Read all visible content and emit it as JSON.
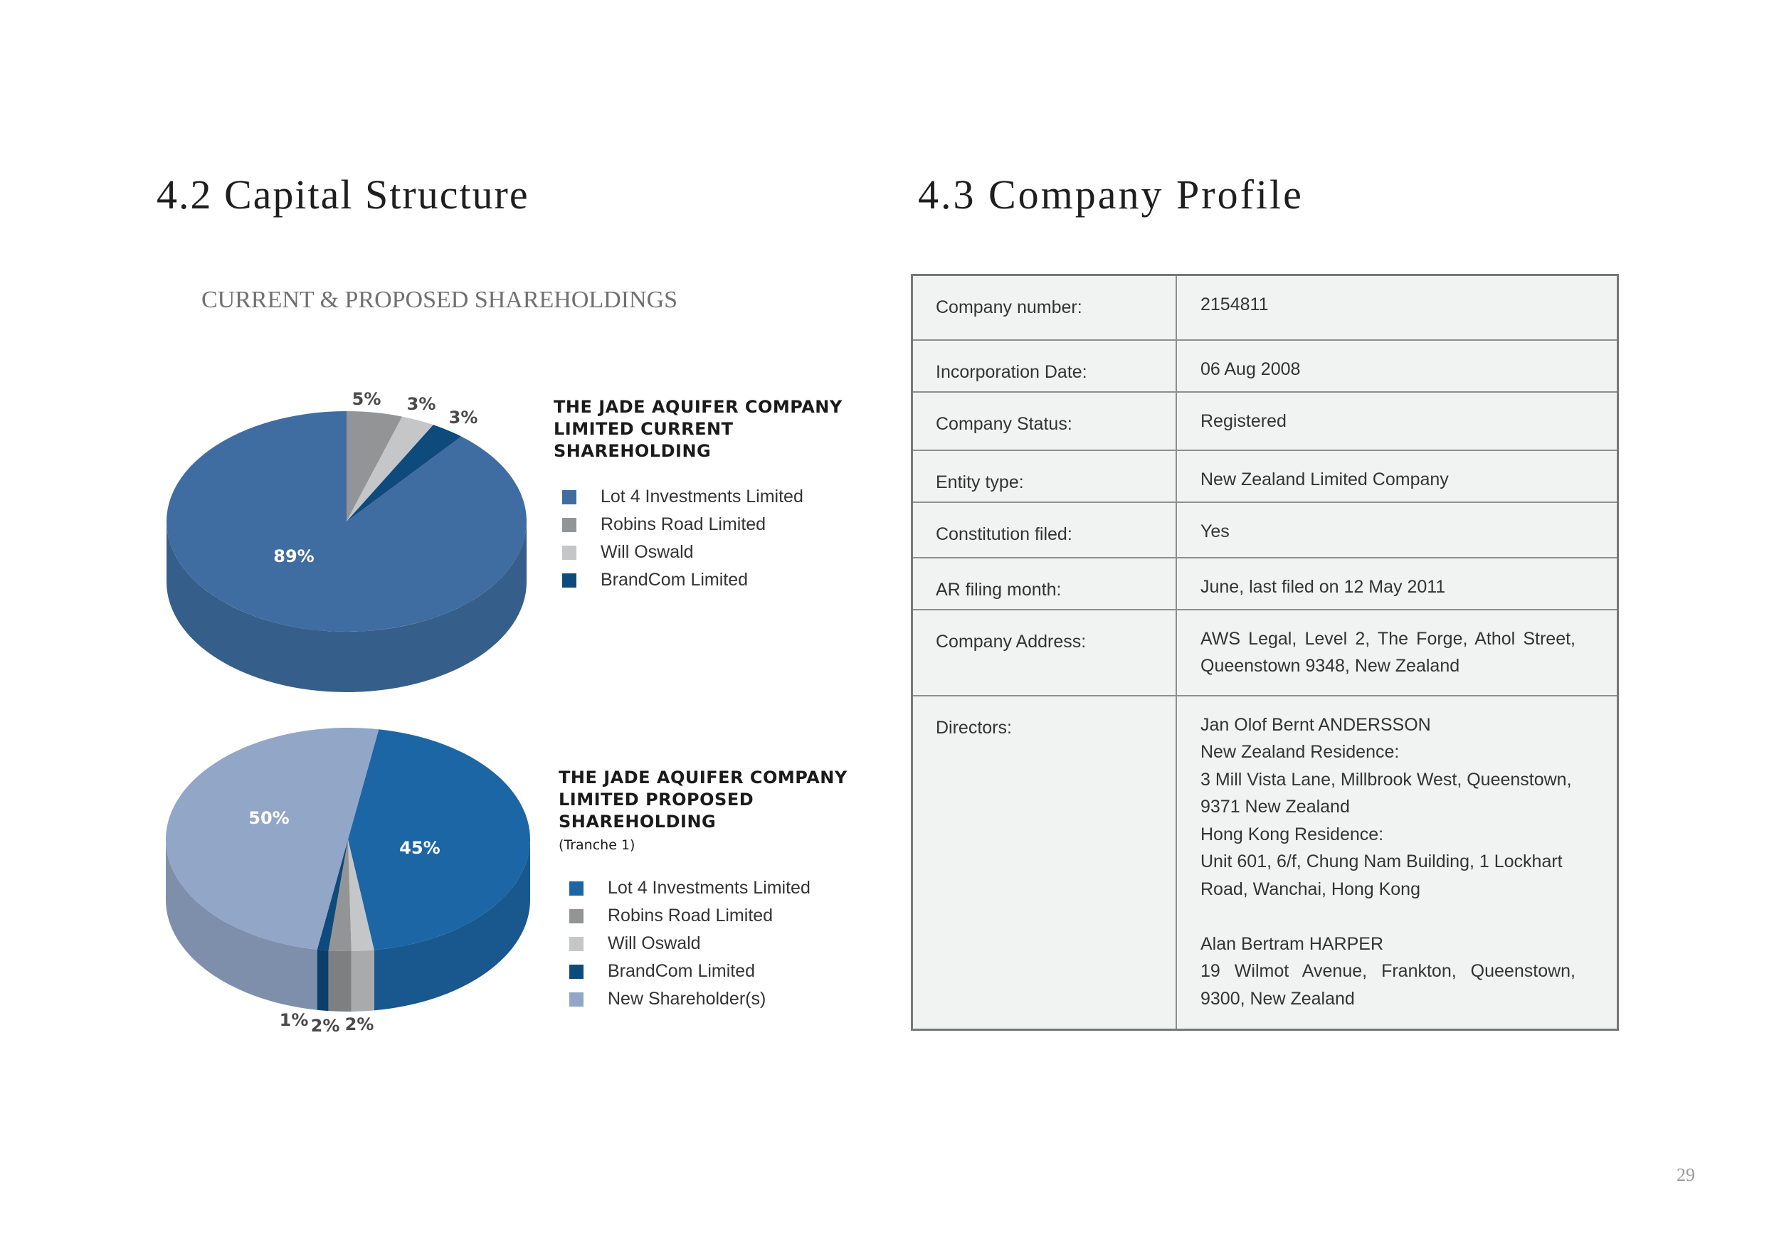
{
  "headings": {
    "capital": "4.2 Capital Structure",
    "profile": "4.3  Company Profile"
  },
  "subtitle": "CURRENT & PROPOSED SHAREHOLDINGS",
  "chart_data": [
    {
      "type": "pie",
      "title": "THE JADE AQUIFER COMPANY LIMITED CURRENT SHAREHOLDING",
      "categories": [
        "Lot 4 Investments Limited",
        "Robins Road Limited",
        "Will Oswald",
        "BrandCom Limited"
      ],
      "values": [
        89,
        5,
        3,
        3
      ],
      "labels": [
        "89%",
        "5%",
        "3%",
        "3%"
      ],
      "colors": [
        "#3f6da1",
        "#939496",
        "#c5c6c8",
        "#0e4a7c"
      ],
      "legend": "right"
    },
    {
      "type": "pie",
      "title": "THE JADE AQUIFER COMPANY LIMITED PROPOSED SHAREHOLDING",
      "subtitle": "(Tranche 1)",
      "categories": [
        "Lot 4 Investments Limited",
        "Robins Road Limited",
        "Will Oswald",
        "BrandCom Limited",
        "New Shareholder(s)"
      ],
      "values": [
        45,
        2,
        2,
        1,
        50
      ],
      "labels": [
        "45%",
        "2%",
        "2%",
        "1%",
        "50%"
      ],
      "colors": [
        "#1c66a6",
        "#939496",
        "#c5c6c8",
        "#0e4a7c",
        "#92a6c7"
      ],
      "legend": "right"
    }
  ],
  "profile": [
    {
      "label": "Company number:",
      "lines": [
        "2154811"
      ]
    },
    {
      "label": "Incorporation Date:",
      "lines": [
        "06 Aug 2008"
      ]
    },
    {
      "label": "Company Status:",
      "lines": [
        "Registered"
      ]
    },
    {
      "label": "Entity type:",
      "lines": [
        "New Zealand Limited Company"
      ]
    },
    {
      "label": "Constitution filed:",
      "lines": [
        "Yes"
      ]
    },
    {
      "label": "AR filing month:",
      "lines": [
        "June, last filed on 12 May 2011"
      ]
    },
    {
      "label": "Company Address:",
      "lines": [
        "AWS Legal, Level 2, The Forge, Athol Street,",
        "Queenstown 9348, New Zealand"
      ]
    },
    {
      "label": "Directors:",
      "lines": [
        "Jan Olof Bernt ANDERSSON",
        "New Zealand Residence:",
        "3 Mill Vista Lane, Millbrook West, Queenstown,",
        "9371 New Zealand",
        "Hong Kong Residence:",
        "Unit 601, 6/f, Chung Nam Building, 1 Lockhart",
        "Road, Wanchai, Hong Kong",
        "",
        "Alan Bertram HARPER",
        "19 Wilmot Avenue, Frankton, Queenstown,",
        "9300, New Zealand"
      ]
    }
  ],
  "page_number": "29"
}
